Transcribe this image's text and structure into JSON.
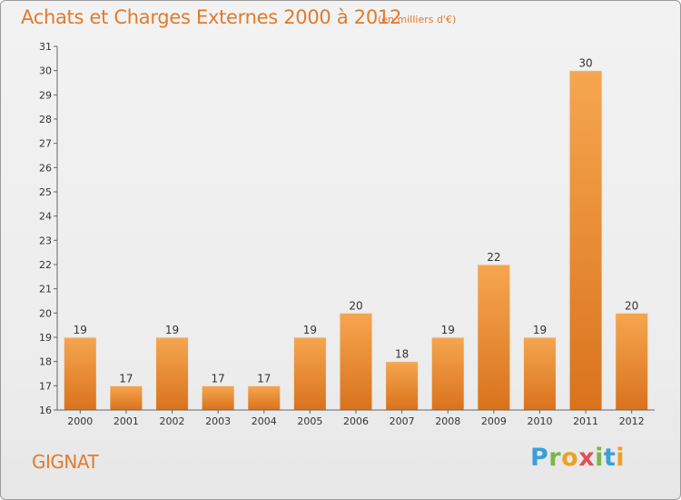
{
  "header": {
    "title": "Achats et Charges Externes 2000 à 2012",
    "subtitle": "(en milliers d'€)"
  },
  "footer": {
    "city": "GIGNAT",
    "logo": [
      "P",
      "r",
      "o",
      "x",
      "i",
      "t",
      "i"
    ]
  },
  "colors": {
    "accent": "#e07b2e",
    "bar_top": "#f6a650",
    "bar_bottom": "#d9731c",
    "axis": "#666666"
  },
  "chart_data": {
    "type": "bar",
    "categories": [
      "2000",
      "2001",
      "2002",
      "2003",
      "2004",
      "2005",
      "2006",
      "2007",
      "2008",
      "2009",
      "2010",
      "2011",
      "2012"
    ],
    "values": [
      19,
      17,
      19,
      17,
      17,
      19,
      20,
      18,
      19,
      22,
      19,
      30,
      20
    ],
    "data_labels": [
      "19",
      "17",
      "19",
      "17",
      "17",
      "19",
      "20",
      "18",
      "19",
      "22",
      "19",
      "30",
      "20"
    ],
    "title": "Achats et Charges Externes 2000 à 2012",
    "xlabel": "",
    "ylabel": "",
    "ylim": [
      16,
      31
    ],
    "yticks": [
      "16",
      "17",
      "18",
      "19",
      "20",
      "21",
      "22",
      "23",
      "24",
      "25",
      "26",
      "27",
      "28",
      "29",
      "30",
      "31"
    ],
    "grid": false,
    "legend": "none"
  }
}
